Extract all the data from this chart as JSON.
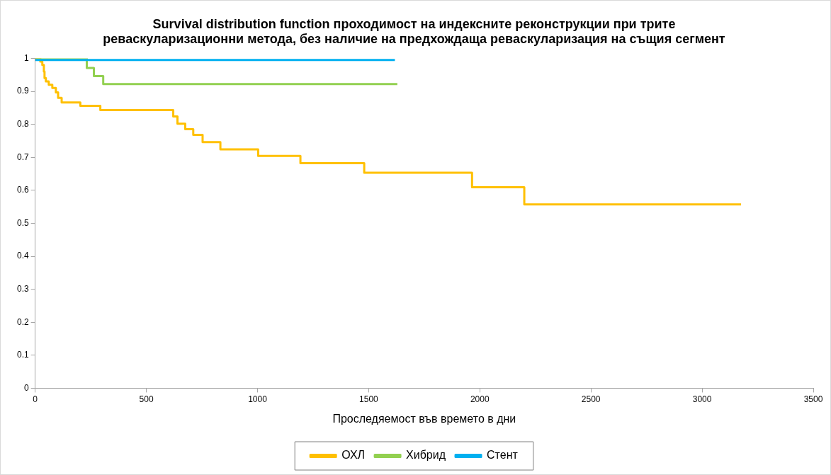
{
  "chart_data": {
    "type": "step",
    "title": "Survival distribution function проходимост на индексните реконструкции при трите реваскуларизационни метода, без наличие на предхождаща реваскуларизация на същия сегмент",
    "xlabel": "Проследяемост във времето в дни",
    "series": [
      {
        "name": "ОХЛ",
        "color": "#ffc000",
        "x": [
          0,
          23,
          32,
          39,
          42,
          48,
          61,
          77,
          93,
          103,
          119,
          203,
          293,
          621,
          640,
          675,
          711,
          753,
          833,
          1003,
          1193,
          1480,
          1965,
          2200,
          3175
        ],
        "values": [
          1,
          0.99,
          0.98,
          0.96,
          0.94,
          0.93,
          0.92,
          0.91,
          0.897,
          0.88,
          0.866,
          0.856,
          0.843,
          0.824,
          0.802,
          0.785,
          0.768,
          0.746,
          0.724,
          0.704,
          0.682,
          0.653,
          0.609,
          0.557,
          0.557
        ]
      },
      {
        "name": "Хибрид",
        "color": "#92d050",
        "x": [
          0,
          232,
          264,
          306,
          1629
        ],
        "values": [
          1,
          0.971,
          0.946,
          0.922,
          0.922
        ]
      },
      {
        "name": "Стент",
        "color": "#00b0f0",
        "x": [
          0,
          1618
        ],
        "values": [
          0.995,
          0.995
        ]
      }
    ],
    "xlim": [
      0,
      3500
    ],
    "xticks": [
      0,
      500,
      1000,
      1500,
      2000,
      2500,
      3000,
      3500
    ],
    "ylim": [
      0,
      1
    ],
    "yticks": [
      0,
      0.1,
      0.2,
      0.3,
      0.4,
      0.5,
      0.6,
      0.7,
      0.8,
      0.9,
      1
    ],
    "grid": false,
    "legend": "bottom"
  }
}
